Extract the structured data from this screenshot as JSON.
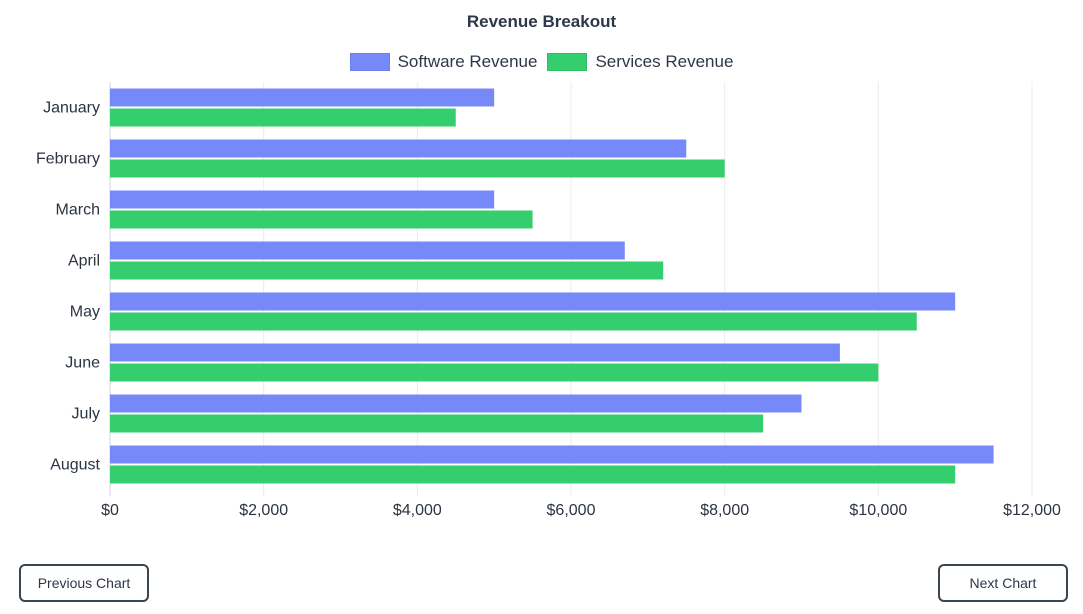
{
  "chart_data": {
    "type": "bar",
    "orientation": "horizontal",
    "title": "Revenue Breakout",
    "categories": [
      "January",
      "February",
      "March",
      "April",
      "May",
      "June",
      "July",
      "August"
    ],
    "series": [
      {
        "name": "Software Revenue",
        "color": "#7789f8",
        "values": [
          5000,
          7500,
          5000,
          6700,
          11000,
          9500,
          9000,
          11500
        ]
      },
      {
        "name": "Services Revenue",
        "color": "#34ce6f",
        "values": [
          4500,
          8000,
          5500,
          7200,
          10500,
          10000,
          8500,
          11000
        ]
      }
    ],
    "xlim": [
      0,
      12000
    ],
    "x_ticks": [
      "$0",
      "$2,000",
      "$4,000",
      "$6,000",
      "$8,000",
      "$10,000",
      "$12,000"
    ],
    "x_tick_values": [
      0,
      2000,
      4000,
      6000,
      8000,
      10000,
      12000
    ],
    "grid": true,
    "legend_position": "top-center"
  },
  "nav": {
    "previous_label": "Previous Chart",
    "next_label": "Next Chart"
  }
}
